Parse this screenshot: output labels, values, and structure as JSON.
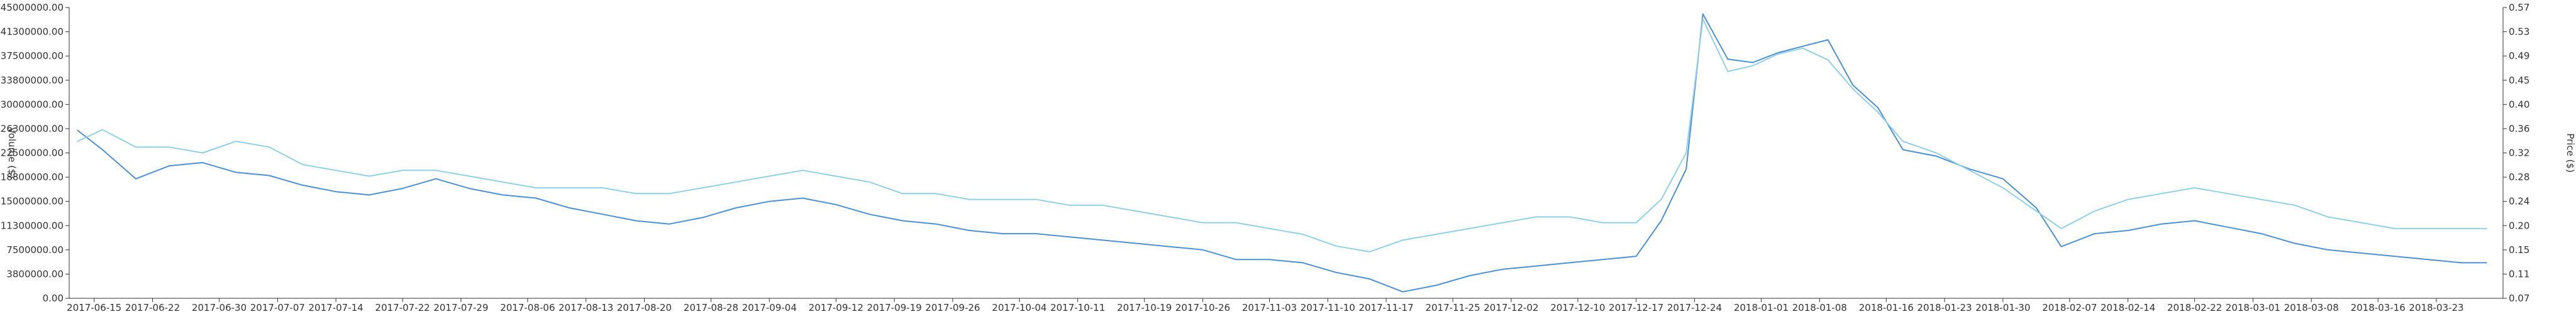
{
  "chart_data": {
    "type": "line",
    "title": "",
    "xlabel": "",
    "ylabel_left": "Volume ($)",
    "ylabel_right": "Price ($)",
    "grid": false,
    "x_tick_labels": [
      "2017-06-15",
      "2017-06-22",
      "2017-06-30",
      "2017-07-07",
      "2017-07-14",
      "2017-07-22",
      "2017-07-29",
      "2017-08-06",
      "2017-08-13",
      "2017-08-20",
      "2017-08-28",
      "2017-09-04",
      "2017-09-12",
      "2017-09-19",
      "2017-09-26",
      "2017-10-04",
      "2017-10-11",
      "2017-10-19",
      "2017-10-26",
      "2017-11-03",
      "2017-11-10",
      "2017-11-17",
      "2017-11-25",
      "2017-12-02",
      "2017-12-10",
      "2017-12-17",
      "2017-12-24",
      "2018-01-01",
      "2018-01-08",
      "2018-01-16",
      "2018-01-23",
      "2018-01-30",
      "2018-02-07",
      "2018-02-14",
      "2018-02-22",
      "2018-03-01",
      "2018-03-08",
      "2018-03-16",
      "2018-03-23"
    ],
    "y_left_tick_labels": [
      "0.00",
      "3800000.00",
      "7500000.00",
      "11300000.00",
      "15000000.00",
      "18800000.00",
      "22500000.00",
      "26300000.00",
      "30000000.00",
      "33800000.00",
      "37500000.00",
      "41300000.00",
      "45000000.00"
    ],
    "y_right_tick_labels": [
      "0.07",
      "0.11",
      "0.15",
      "0.20",
      "0.24",
      "0.28",
      "0.32",
      "0.36",
      "0.40",
      "0.45",
      "0.49",
      "0.53",
      "0.57"
    ],
    "y_left_range": [
      0,
      45000000
    ],
    "y_right_range": [
      0.07,
      0.57
    ],
    "series": [
      {
        "axis": "left",
        "color": "#4a90d9",
        "x": [
          "2017-06-13",
          "2017-06-16",
          "2017-06-20",
          "2017-06-24",
          "2017-06-28",
          "2017-07-02",
          "2017-07-06",
          "2017-07-10",
          "2017-07-14",
          "2017-07-18",
          "2017-07-22",
          "2017-07-26",
          "2017-07-30",
          "2017-08-03",
          "2017-08-07",
          "2017-08-11",
          "2017-08-15",
          "2017-08-19",
          "2017-08-23",
          "2017-08-27",
          "2017-08-31",
          "2017-09-04",
          "2017-09-08",
          "2017-09-12",
          "2017-09-16",
          "2017-09-20",
          "2017-09-24",
          "2017-09-28",
          "2017-10-02",
          "2017-10-06",
          "2017-10-10",
          "2017-10-14",
          "2017-10-18",
          "2017-10-22",
          "2017-10-26",
          "2017-10-30",
          "2017-11-03",
          "2017-11-07",
          "2017-11-11",
          "2017-11-15",
          "2017-11-19",
          "2017-11-23",
          "2017-11-27",
          "2017-12-01",
          "2017-12-05",
          "2017-12-09",
          "2017-12-13",
          "2017-12-17",
          "2017-12-20",
          "2017-12-23",
          "2017-12-25",
          "2017-12-28",
          "2017-12-31",
          "2018-01-03",
          "2018-01-06",
          "2018-01-09",
          "2018-01-12",
          "2018-01-15",
          "2018-01-18",
          "2018-01-22",
          "2018-01-26",
          "2018-01-30",
          "2018-02-03",
          "2018-02-06",
          "2018-02-10",
          "2018-02-14",
          "2018-02-18",
          "2018-02-22",
          "2018-02-26",
          "2018-03-02",
          "2018-03-06",
          "2018-03-10",
          "2018-03-14",
          "2018-03-18",
          "2018-03-22",
          "2018-03-26",
          "2018-03-29"
        ],
        "values": [
          26000000,
          23000000,
          18500000,
          20500000,
          21000000,
          19500000,
          19000000,
          17500000,
          16500000,
          16000000,
          17000000,
          18500000,
          17000000,
          16000000,
          15500000,
          14000000,
          13000000,
          12000000,
          11500000,
          12500000,
          14000000,
          15000000,
          15500000,
          14500000,
          13000000,
          12000000,
          11500000,
          10500000,
          10000000,
          10000000,
          9500000,
          9000000,
          8500000,
          8000000,
          7500000,
          6000000,
          6000000,
          5500000,
          4000000,
          3000000,
          1000000,
          2000000,
          3500000,
          4500000,
          5000000,
          5500000,
          6000000,
          6500000,
          12000000,
          20000000,
          44000000,
          37000000,
          36500000,
          38000000,
          39000000,
          40000000,
          33000000,
          29500000,
          23000000,
          22000000,
          20000000,
          18500000,
          14000000,
          8000000,
          10000000,
          10500000,
          11500000,
          12000000,
          11000000,
          10000000,
          8500000,
          7500000,
          7000000,
          6500000,
          6000000,
          5500000,
          5500000
        ]
      },
      {
        "axis": "right",
        "color": "#8fd0e6",
        "x": [
          "2017-06-13",
          "2017-06-16",
          "2017-06-20",
          "2017-06-24",
          "2017-06-28",
          "2017-07-02",
          "2017-07-06",
          "2017-07-10",
          "2017-07-14",
          "2017-07-18",
          "2017-07-22",
          "2017-07-26",
          "2017-07-30",
          "2017-08-03",
          "2017-08-07",
          "2017-08-11",
          "2017-08-15",
          "2017-08-19",
          "2017-08-23",
          "2017-08-27",
          "2017-08-31",
          "2017-09-04",
          "2017-09-08",
          "2017-09-12",
          "2017-09-16",
          "2017-09-20",
          "2017-09-24",
          "2017-09-28",
          "2017-10-02",
          "2017-10-06",
          "2017-10-10",
          "2017-10-14",
          "2017-10-18",
          "2017-10-22",
          "2017-10-26",
          "2017-10-30",
          "2017-11-03",
          "2017-11-07",
          "2017-11-11",
          "2017-11-15",
          "2017-11-19",
          "2017-11-23",
          "2017-11-27",
          "2017-12-01",
          "2017-12-05",
          "2017-12-09",
          "2017-12-13",
          "2017-12-17",
          "2017-12-20",
          "2017-12-23",
          "2017-12-25",
          "2017-12-28",
          "2017-12-31",
          "2018-01-03",
          "2018-01-06",
          "2018-01-09",
          "2018-01-12",
          "2018-01-15",
          "2018-01-18",
          "2018-01-22",
          "2018-01-26",
          "2018-01-30",
          "2018-02-03",
          "2018-02-06",
          "2018-02-10",
          "2018-02-14",
          "2018-02-18",
          "2018-02-22",
          "2018-02-26",
          "2018-03-02",
          "2018-03-06",
          "2018-03-10",
          "2018-03-14",
          "2018-03-18",
          "2018-03-22",
          "2018-03-26",
          "2018-03-29"
        ],
        "values": [
          0.34,
          0.36,
          0.33,
          0.33,
          0.32,
          0.34,
          0.33,
          0.3,
          0.29,
          0.28,
          0.29,
          0.29,
          0.28,
          0.27,
          0.26,
          0.26,
          0.26,
          0.25,
          0.25,
          0.26,
          0.27,
          0.28,
          0.29,
          0.28,
          0.27,
          0.25,
          0.25,
          0.24,
          0.24,
          0.24,
          0.23,
          0.23,
          0.22,
          0.21,
          0.2,
          0.2,
          0.19,
          0.18,
          0.16,
          0.15,
          0.17,
          0.18,
          0.19,
          0.2,
          0.21,
          0.21,
          0.2,
          0.2,
          0.24,
          0.32,
          0.55,
          0.46,
          0.47,
          0.49,
          0.5,
          0.48,
          0.43,
          0.39,
          0.34,
          0.32,
          0.29,
          0.26,
          0.22,
          0.19,
          0.22,
          0.24,
          0.25,
          0.26,
          0.25,
          0.24,
          0.23,
          0.21,
          0.2,
          0.19,
          0.19,
          0.19,
          0.19
        ]
      }
    ]
  }
}
